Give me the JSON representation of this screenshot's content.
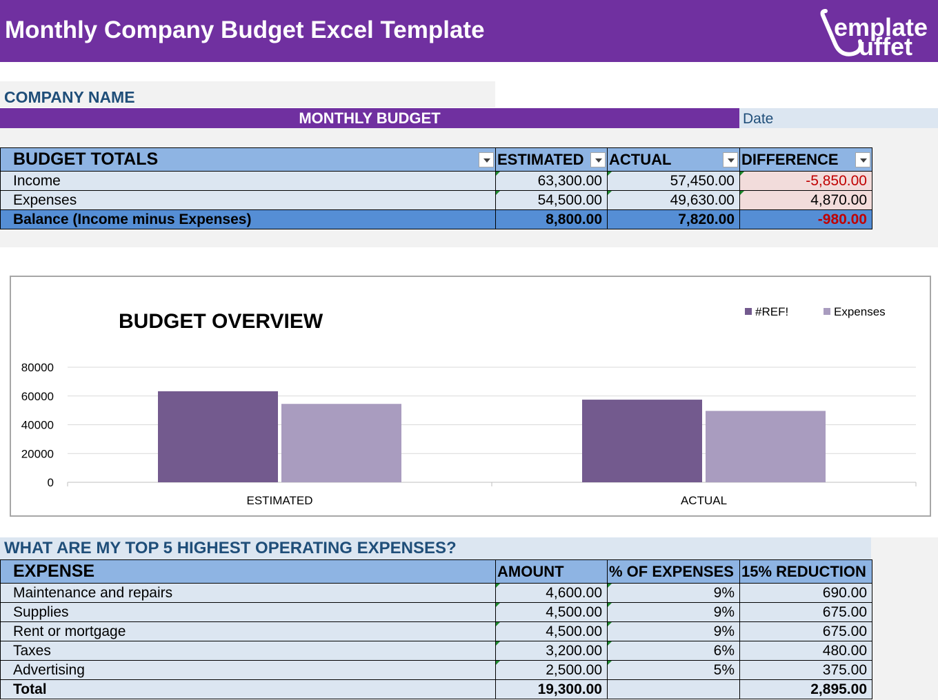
{
  "header": {
    "title": "Monthly Company Budget Excel Template",
    "logo_line1": "emplate",
    "logo_line2": "uffet"
  },
  "company": {
    "name": "COMPANY NAME",
    "monthly_budget": "MONTHLY BUDGET",
    "date_label": "Date"
  },
  "budget_totals": {
    "headers": [
      "BUDGET TOTALS",
      "ESTIMATED",
      "ACTUAL",
      "DIFFERENCE"
    ],
    "rows": [
      {
        "label": "Income",
        "estimated": "63,300.00",
        "actual": "57,450.00",
        "difference": "-5,850.00"
      },
      {
        "label": "Expenses",
        "estimated": "54,500.00",
        "actual": "49,630.00",
        "difference": "4,870.00"
      }
    ],
    "balance": {
      "label": "Balance (Income minus Expenses)",
      "estimated": "8,800.00",
      "actual": "7,820.00",
      "difference": "-980.00"
    }
  },
  "chart_data": {
    "type": "bar",
    "title": "BUDGET OVERVIEW",
    "categories": [
      "ESTIMATED",
      "ACTUAL"
    ],
    "series": [
      {
        "name": "#REF!",
        "values": [
          63300,
          57450
        ],
        "color": "#735a8e"
      },
      {
        "name": "Expenses",
        "values": [
          54500,
          49630
        ],
        "color": "#a99cbf"
      }
    ],
    "yticks": [
      0,
      20000,
      40000,
      60000,
      80000
    ],
    "ylim": [
      0,
      80000
    ],
    "grid": true,
    "legend": "top-right"
  },
  "expenses": {
    "question": "WHAT ARE MY TOP 5 HIGHEST OPERATING EXPENSES?",
    "headers": [
      "EXPENSE",
      "AMOUNT",
      "% OF EXPENSES",
      "15% REDUCTION"
    ],
    "rows": [
      {
        "expense": "Maintenance and repairs",
        "amount": "4,600.00",
        "pct": "9%",
        "reduction": "690.00"
      },
      {
        "expense": "Supplies",
        "amount": "4,500.00",
        "pct": "9%",
        "reduction": "675.00"
      },
      {
        "expense": "Rent or mortgage",
        "amount": "4,500.00",
        "pct": "9%",
        "reduction": "675.00"
      },
      {
        "expense": "Taxes",
        "amount": "3,200.00",
        "pct": "6%",
        "reduction": "480.00"
      },
      {
        "expense": "Advertising",
        "amount": "2,500.00",
        "pct": "5%",
        "reduction": "375.00"
      }
    ],
    "total": {
      "label": "Total",
      "amount": "19,300.00",
      "pct": "",
      "reduction": "2,895.00"
    }
  },
  "colors": {
    "brand_purple": "#7030a0",
    "header_blue": "#8eb4e3",
    "row_blue": "#dce6f1",
    "balance_blue": "#558ed5",
    "negative_red": "#c00000"
  }
}
